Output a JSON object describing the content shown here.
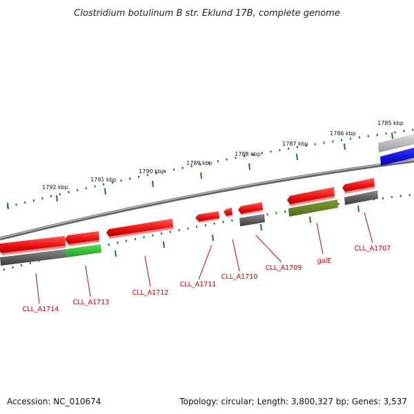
{
  "title": "Clostridium botulinum B str. Eklund 17B, complete genome",
  "accession": "Accession: NC_010674",
  "topology": "Topology: circular; Length: 3,800,327 bp; Genes: 3,537",
  "scale_labels": [
    "1792 kbp",
    "1791 kbp",
    "1790 kbp",
    "1789 kbp",
    "1788 kbp",
    "1787 kbp",
    "1786 kbp",
    "1785 kbp"
  ],
  "gene_labels": [
    "CLL_A1714",
    "CLL_A1713",
    "CLL_A1712",
    "CLL_A1711",
    "CLL_A1710",
    "CLL_A1709",
    "galE",
    "CLL_A1707"
  ],
  "colors": {
    "cds": "#ee1111",
    "gray_feature": "#666666",
    "light_gray_feature": "#bbbbbb",
    "green_feature": "#33cc33",
    "olive_feature": "#6b8e23",
    "blue_feature": "#0000ee",
    "scale_ticks": "#1a7a1a",
    "backbone": "#777777",
    "label": "#cc0000"
  }
}
